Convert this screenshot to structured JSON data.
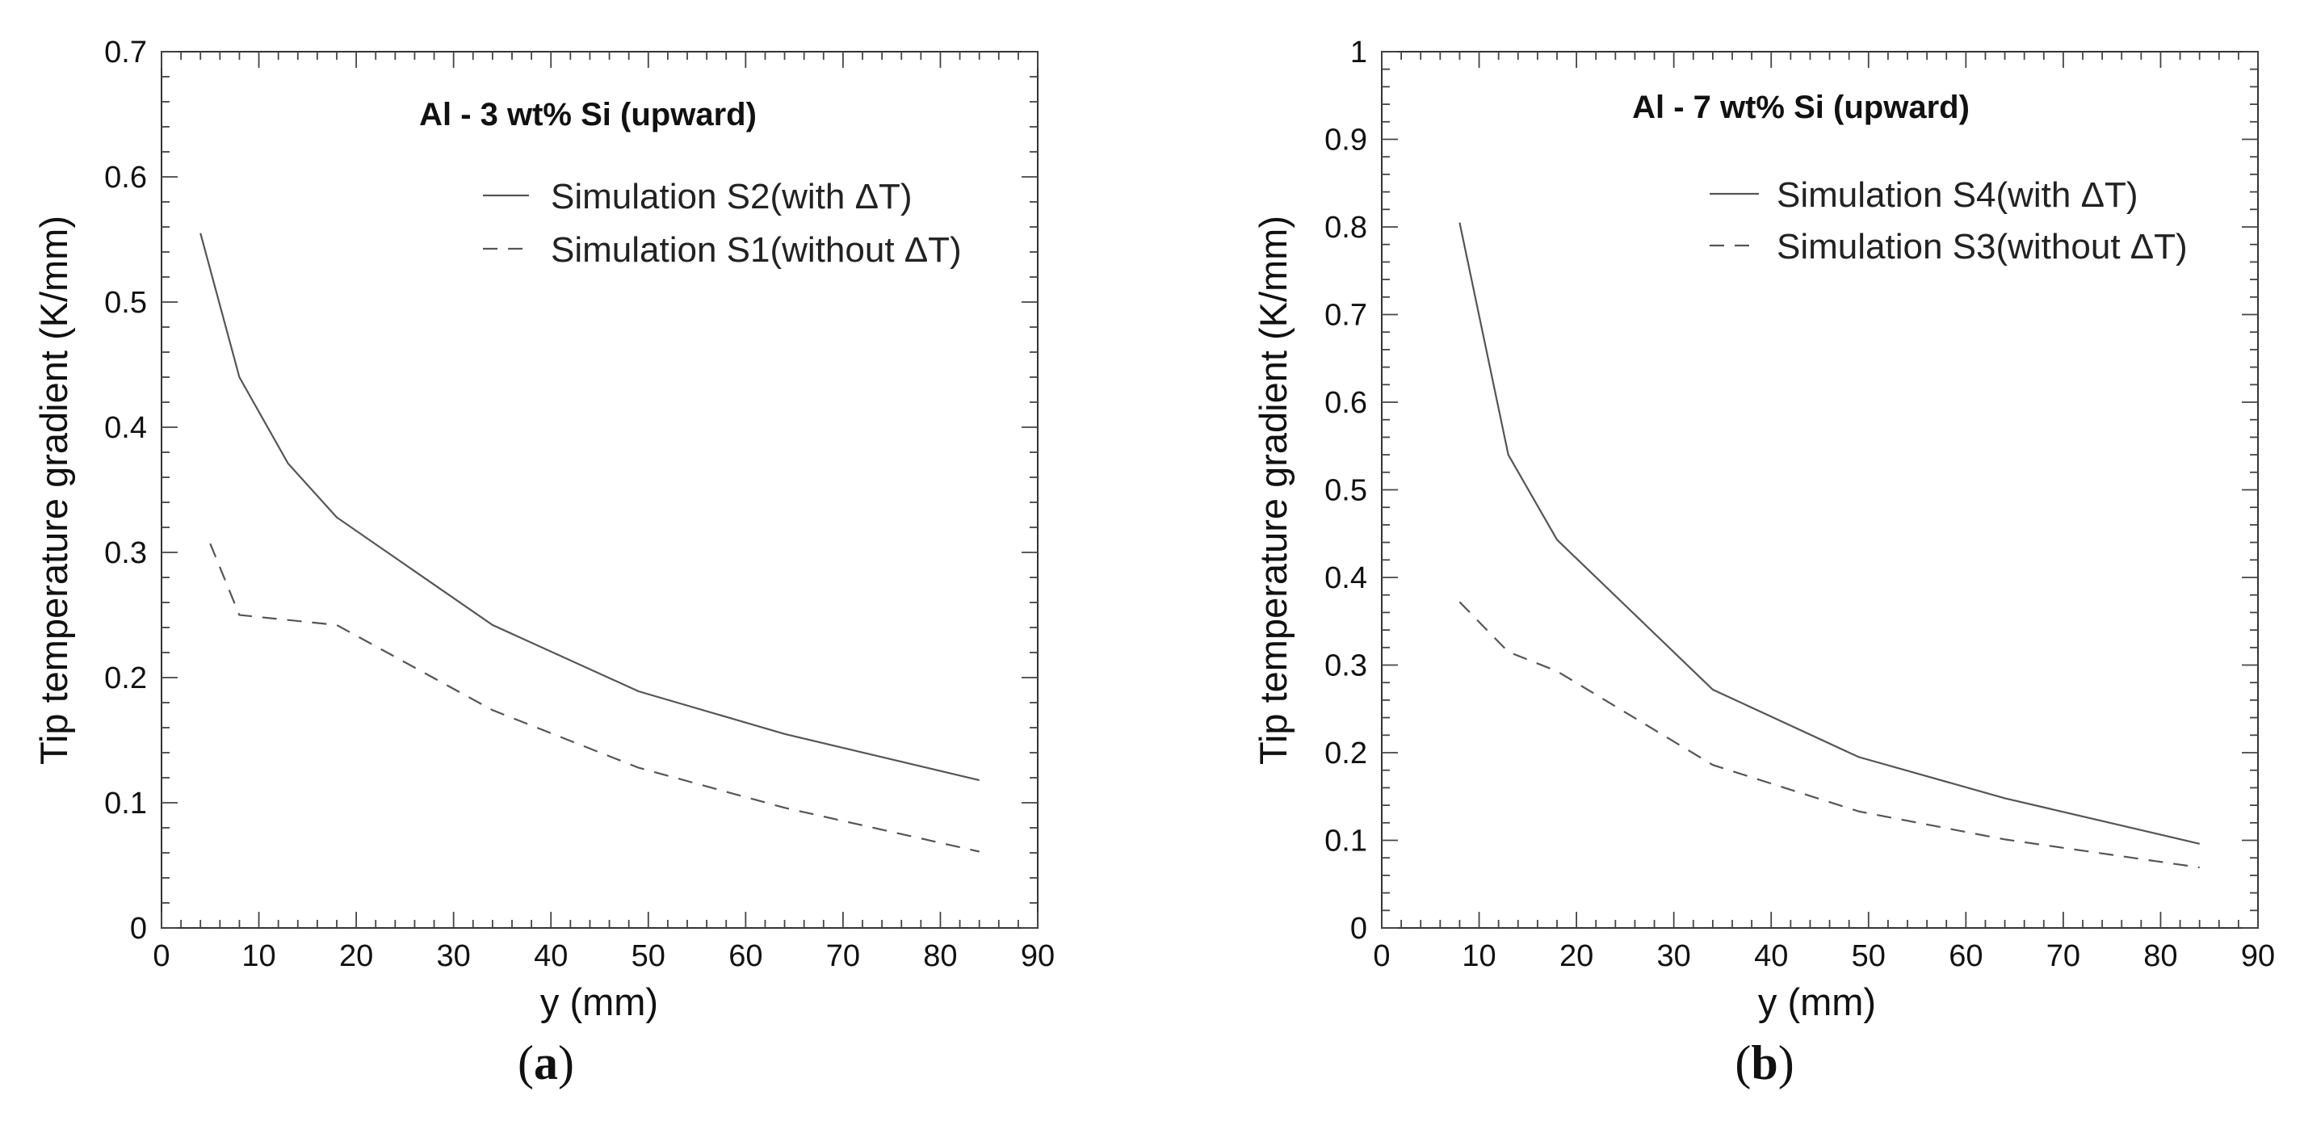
{
  "chart_data": [
    {
      "type": "line",
      "panel_label_open": "(",
      "panel_label_letter": "a",
      "panel_label_close": ")",
      "title": "Al - 3 wt% Si (upward)",
      "xlabel": "y (mm)",
      "ylabel": "Tip temperature gradient (K/mm)",
      "xlim": [
        0,
        90
      ],
      "ylim": [
        0,
        0.7
      ],
      "xticks": [
        0,
        10,
        20,
        30,
        40,
        50,
        60,
        70,
        80,
        90
      ],
      "yticks": [
        0,
        0.1,
        0.2,
        0.3,
        0.4,
        0.5,
        0.6,
        0.7
      ],
      "xtick_labels": [
        "0",
        "10",
        "20",
        "30",
        "40",
        "50",
        "60",
        "70",
        "80",
        "90"
      ],
      "ytick_labels": [
        "0",
        "0.1",
        "0.2",
        "0.3",
        "0.4",
        "0.5",
        "0.6",
        "0.7"
      ],
      "legend_position": "top-right",
      "series": [
        {
          "name": "Simulation S2(with ΔT)",
          "style": "solid",
          "x": [
            4,
            8,
            13,
            18,
            34,
            49,
            64,
            84
          ],
          "y": [
            0.555,
            0.44,
            0.371,
            0.328,
            0.242,
            0.189,
            0.155,
            0.118
          ]
        },
        {
          "name": "Simulation S1(without ΔT)",
          "style": "dashed",
          "x": [
            5,
            8,
            13,
            18,
            34,
            49,
            64,
            84
          ],
          "y": [
            0.307,
            0.25,
            0.246,
            0.242,
            0.174,
            0.128,
            0.096,
            0.061
          ]
        }
      ]
    },
    {
      "type": "line",
      "panel_label_open": "(",
      "panel_label_letter": "b",
      "panel_label_close": ")",
      "title": "Al - 7 wt% Si (upward)",
      "xlabel": "y (mm)",
      "ylabel": "Tip temperature gradient (K/mm)",
      "xlim": [
        0,
        90
      ],
      "ylim": [
        0,
        1
      ],
      "xticks": [
        0,
        10,
        20,
        30,
        40,
        50,
        60,
        70,
        80,
        90
      ],
      "yticks": [
        0,
        0.1,
        0.2,
        0.3,
        0.4,
        0.5,
        0.6,
        0.7,
        0.8,
        0.9,
        1
      ],
      "xtick_labels": [
        "0",
        "10",
        "20",
        "30",
        "40",
        "50",
        "60",
        "70",
        "80",
        "90"
      ],
      "ytick_labels": [
        "0",
        "0.1",
        "0.2",
        "0.3",
        "0.4",
        "0.5",
        "0.6",
        "0.7",
        "0.8",
        "0.9",
        "1"
      ],
      "legend_position": "top-right",
      "series": [
        {
          "name": "Simulation S4(with ΔT)",
          "style": "solid",
          "x": [
            8,
            13,
            18,
            34,
            49,
            64,
            84
          ],
          "y": [
            0.805,
            0.54,
            0.443,
            0.272,
            0.195,
            0.148,
            0.096
          ]
        },
        {
          "name": "Simulation S3(without ΔT)",
          "style": "dashed",
          "x": [
            8,
            13,
            18,
            34,
            49,
            64,
            84
          ],
          "y": [
            0.372,
            0.315,
            0.293,
            0.186,
            0.133,
            0.101,
            0.069
          ]
        }
      ]
    }
  ]
}
